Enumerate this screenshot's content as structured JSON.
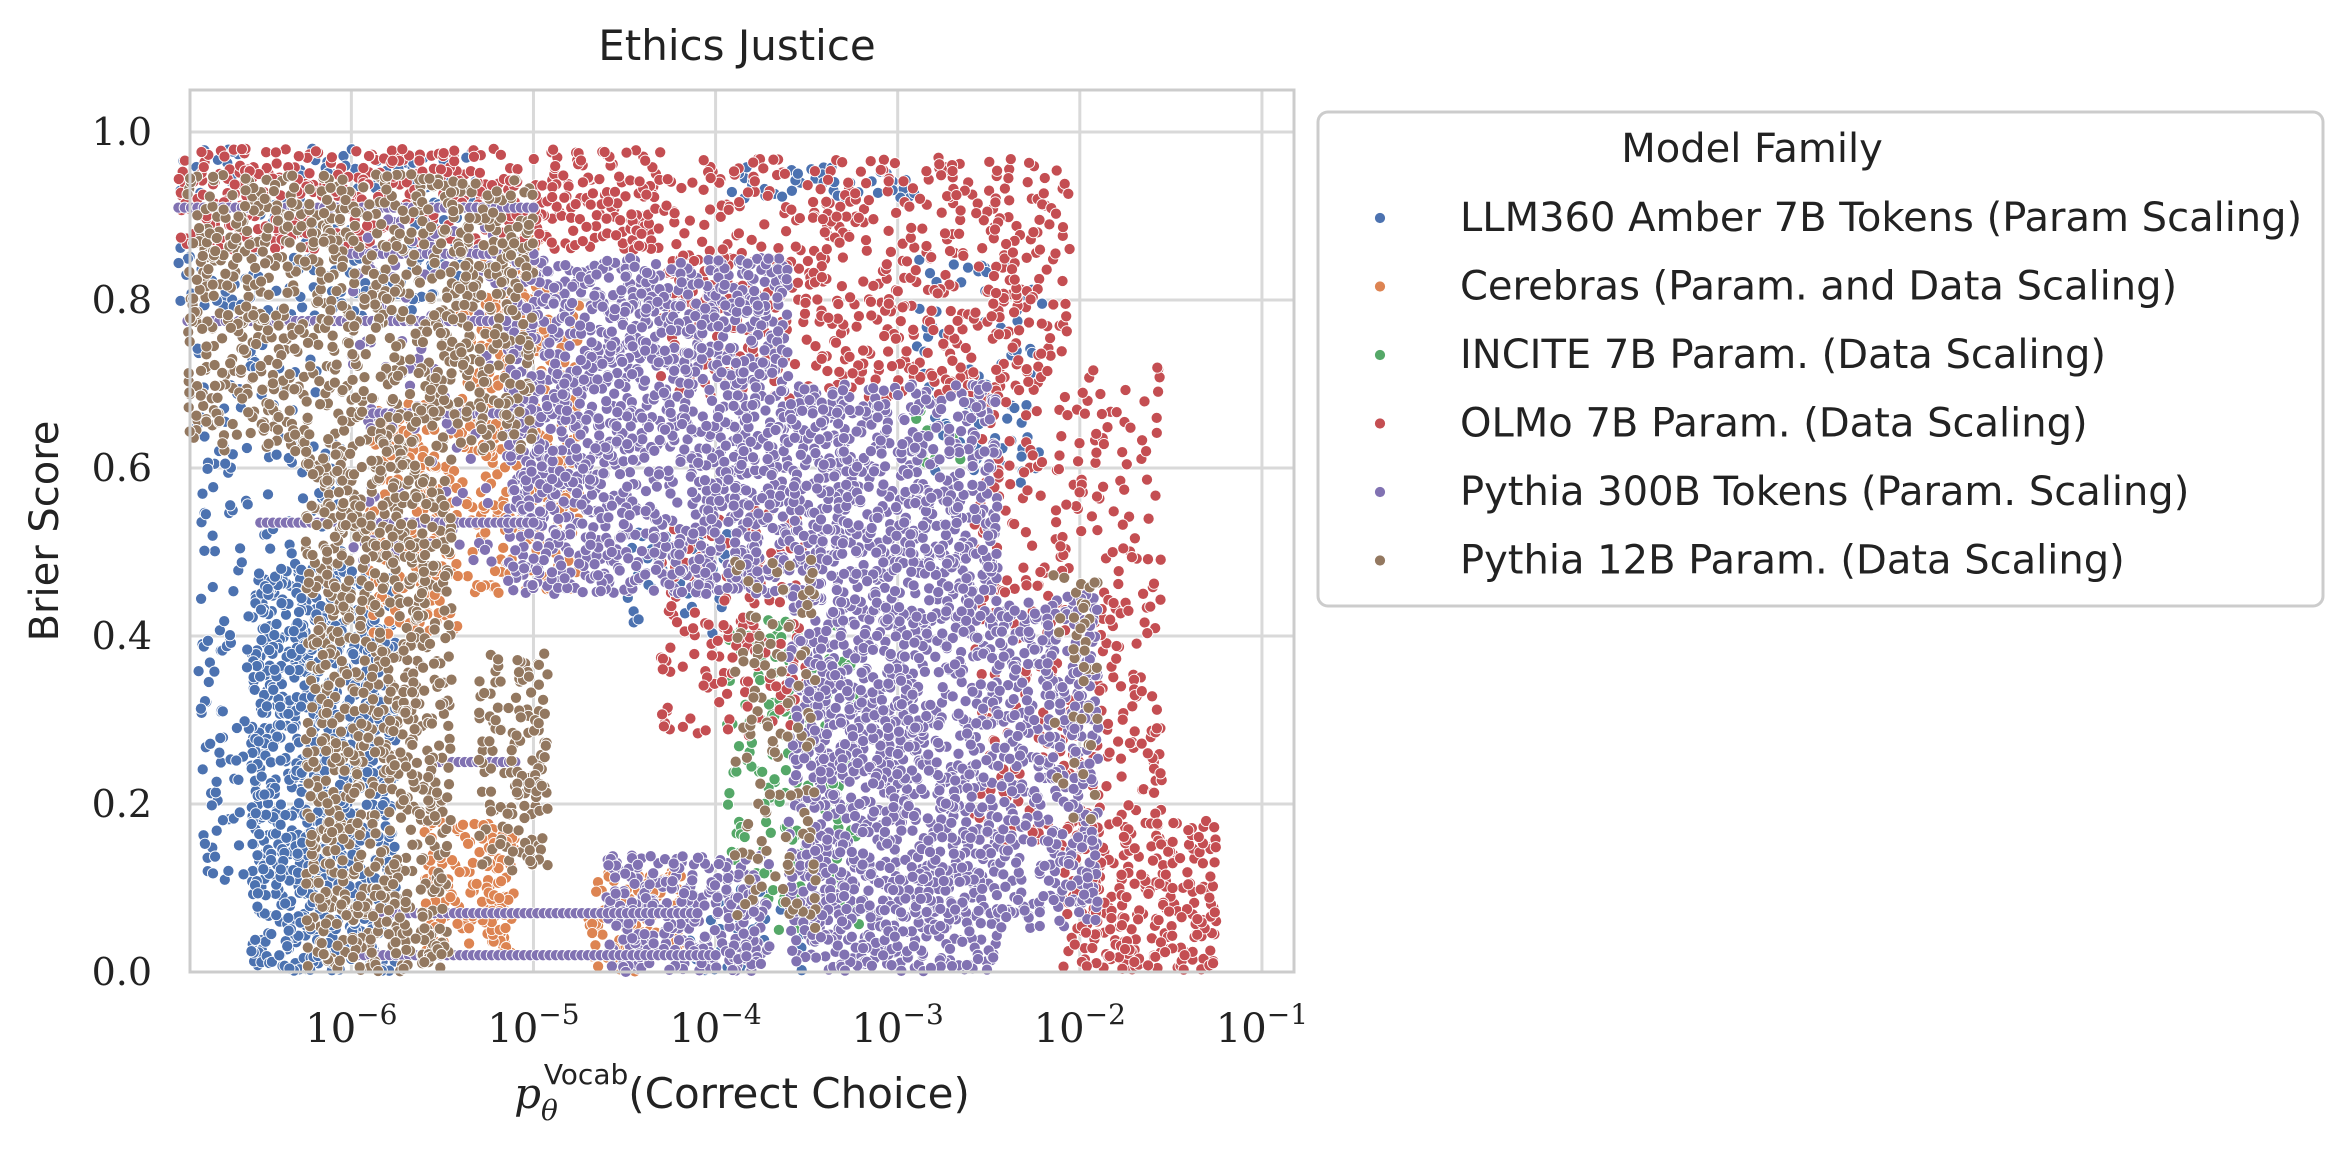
{
  "chart_data": {
    "type": "scatter",
    "title": "Ethics Justice",
    "xlabel": {
      "symbol": "p",
      "subscript": "θ",
      "superscript": "Vocab",
      "text": "(Correct Choice)"
    },
    "ylabel": "Brier Score",
    "x_scale": "log",
    "xlim": [
      1.3e-07,
      0.15
    ],
    "ylim": [
      0.0,
      1.05
    ],
    "x_ticks": [
      {
        "value": 1e-06,
        "base": "10",
        "exp": "−6"
      },
      {
        "value": 1e-05,
        "base": "10",
        "exp": "−5"
      },
      {
        "value": 0.0001,
        "base": "10",
        "exp": "−4"
      },
      {
        "value": 0.001,
        "base": "10",
        "exp": "−3"
      },
      {
        "value": 0.01,
        "base": "10",
        "exp": "−2"
      },
      {
        "value": 0.1,
        "base": "10",
        "exp": "−1"
      }
    ],
    "y_ticks": [
      {
        "value": 0.0,
        "label": "0.0"
      },
      {
        "value": 0.2,
        "label": "0.2"
      },
      {
        "value": 0.4,
        "label": "0.4"
      },
      {
        "value": 0.6,
        "label": "0.6"
      },
      {
        "value": 0.8,
        "label": "0.8"
      },
      {
        "value": 1.0,
        "label": "1.0"
      }
    ],
    "grid": true,
    "legend": {
      "title": "Model Family",
      "position": "outside-right-top"
    },
    "series": [
      {
        "name": "LLM360 Amber 7B Tokens (Param Scaling)",
        "color": "#4c72b0",
        "regions": [
          {
            "log10x": [
              -6.55,
              -5.75
            ],
            "y": [
              0.0,
              0.48
            ],
            "n": 900
          },
          {
            "log10x": [
              -6.85,
              -6.05
            ],
            "y": [
              0.1,
              0.75
            ],
            "n": 250
          },
          {
            "log10x": [
              -6.95,
              -5.3
            ],
            "y": [
              0.78,
              0.98
            ],
            "n": 220
          },
          {
            "log10x": [
              -4.0,
              -2.9
            ],
            "y": [
              0.92,
              0.96
            ],
            "n": 45
          },
          {
            "log10x": [
              -2.9,
              -2.2
            ],
            "y": [
              0.58,
              0.85
            ],
            "n": 90
          },
          {
            "log10x": [
              -4.5,
              -3.9
            ],
            "y": [
              0.4,
              0.55
            ],
            "n": 40
          },
          {
            "log10x": [
              -4.2,
              -3.5
            ],
            "y": [
              0.0,
              0.1
            ],
            "n": 60
          }
        ]
      },
      {
        "name": "Cerebras (Param. and Data Scaling)",
        "color": "#dd8452",
        "regions": [
          {
            "log10x": [
              -5.4,
              -4.75
            ],
            "y": [
              0.45,
              0.82
            ],
            "n": 320
          },
          {
            "log10x": [
              -5.9,
              -5.4
            ],
            "y": [
              0.4,
              0.68
            ],
            "n": 180
          },
          {
            "log10x": [
              -5.6,
              -5.1
            ],
            "y": [
              0.02,
              0.18
            ],
            "n": 160
          },
          {
            "log10x": [
              -4.7,
              -4.15
            ],
            "y": [
              0.0,
              0.12
            ],
            "n": 110
          },
          {
            "log10x": [
              -5.3,
              -4.9
            ],
            "y": [
              0.75,
              0.88
            ],
            "n": 60
          }
        ]
      },
      {
        "name": "INCITE 7B Param. (Data Scaling)",
        "color": "#55a868",
        "regions": [
          {
            "log10x": [
              -3.95,
              -3.2
            ],
            "y": [
              0.05,
              0.42
            ],
            "n": 190
          },
          {
            "log10x": [
              -2.9,
              -2.6
            ],
            "y": [
              0.6,
              0.68
            ],
            "n": 12
          }
        ]
      },
      {
        "name": "OLMo 7B Param. (Data Scaling)",
        "color": "#c44e52",
        "regions": [
          {
            "log10x": [
              -6.95,
              -4.3
            ],
            "y": [
              0.86,
              0.98
            ],
            "n": 480
          },
          {
            "log10x": [
              -4.3,
              -2.05
            ],
            "y": [
              0.68,
              0.97
            ],
            "n": 600
          },
          {
            "log10x": [
              -2.6,
              -1.55
            ],
            "y": [
              0.15,
              0.72
            ],
            "n": 360
          },
          {
            "log10x": [
              -2.1,
              -1.25
            ],
            "y": [
              0.0,
              0.18
            ],
            "n": 260
          },
          {
            "log10x": [
              -4.3,
              -3.5
            ],
            "y": [
              0.28,
              0.55
            ],
            "n": 160
          }
        ]
      },
      {
        "name": "Pythia 300B Tokens (Param. Scaling)",
        "color": "#8172b2",
        "regions": [
          {
            "log10x": [
              -5.15,
              -3.6
            ],
            "y": [
              0.45,
              0.85
            ],
            "n": 1500
          },
          {
            "log10x": [
              -3.6,
              -2.45
            ],
            "y": [
              0.0,
              0.7
            ],
            "n": 1900
          },
          {
            "log10x": [
              -2.45,
              -1.9
            ],
            "y": [
              0.05,
              0.45
            ],
            "n": 420
          },
          {
            "log10x": [
              -4.6,
              -3.7
            ],
            "y": [
              0.0,
              0.14
            ],
            "n": 300
          },
          {
            "log10x": [
              -6.0,
              -5.2
            ],
            "y": [
              0.48,
              0.9
            ],
            "n": 120
          }
        ],
        "bands": [
          {
            "log10x": [
              -6.95,
              -5.0
            ],
            "y": 0.91
          },
          {
            "log10x": [
              -6.9,
              -5.15
            ],
            "y": 0.775
          },
          {
            "log10x": [
              -6.0,
              -5.0
            ],
            "y": 0.855
          },
          {
            "log10x": [
              -5.95,
              -5.05
            ],
            "y": 0.665
          },
          {
            "log10x": [
              -6.5,
              -5.0
            ],
            "y": 0.535
          },
          {
            "log10x": [
              -5.55,
              -5.1
            ],
            "y": 0.25
          },
          {
            "log10x": [
              -6.0,
              -4.1
            ],
            "y": 0.07
          },
          {
            "log10x": [
              -6.0,
              -4.0
            ],
            "y": 0.02
          }
        ]
      },
      {
        "name": "Pythia 12B Param. (Data Scaling)",
        "color": "#937860",
        "regions": [
          {
            "log10x": [
              -6.9,
              -5.0
            ],
            "y": [
              0.62,
              0.95
            ],
            "n": 950
          },
          {
            "log10x": [
              -6.25,
              -5.45
            ],
            "y": [
              0.0,
              0.62
            ],
            "n": 900
          },
          {
            "log10x": [
              -5.3,
              -4.9
            ],
            "y": [
              0.12,
              0.38
            ],
            "n": 140
          },
          {
            "log10x": [
              -3.9,
              -3.45
            ],
            "y": [
              0.05,
              0.5
            ],
            "n": 120
          },
          {
            "log10x": [
              -2.15,
              -1.9
            ],
            "y": [
              0.18,
              0.48
            ],
            "n": 40
          }
        ]
      }
    ]
  }
}
